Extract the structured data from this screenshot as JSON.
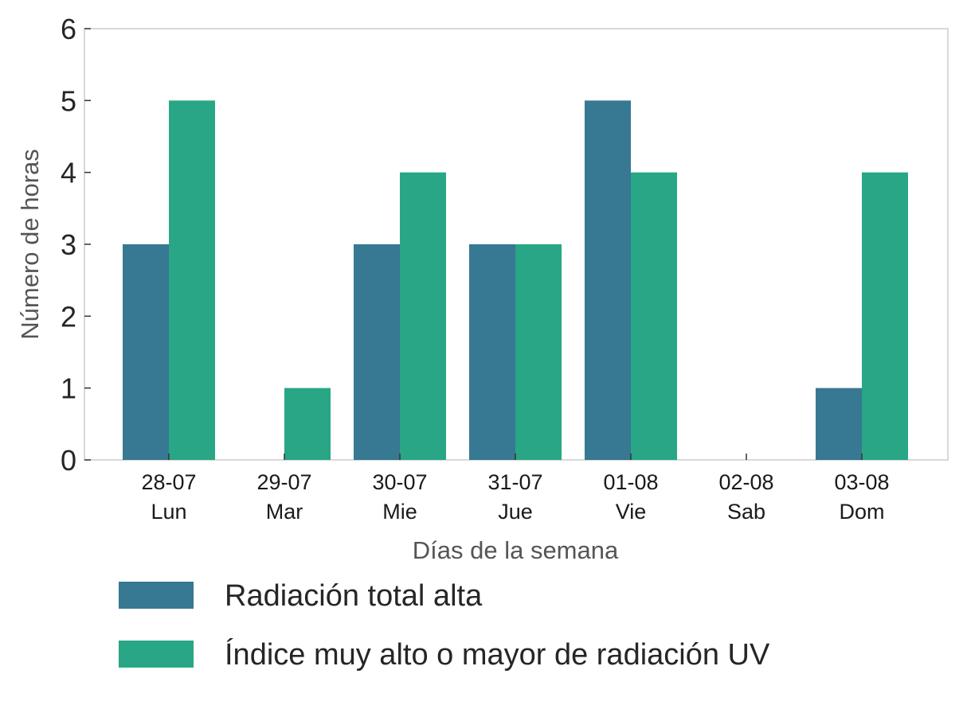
{
  "chart_data": {
    "type": "bar",
    "categories": [
      [
        "28-07",
        "Lun"
      ],
      [
        "29-07",
        "Mar"
      ],
      [
        "30-07",
        "Mie"
      ],
      [
        "31-07",
        "Jue"
      ],
      [
        "01-08",
        "Vie"
      ],
      [
        "02-08",
        "Sab"
      ],
      [
        "03-08",
        "Dom"
      ]
    ],
    "series": [
      {
        "name": "Radiación total alta",
        "color": "#377892",
        "values": [
          3,
          0,
          3,
          3,
          5,
          0,
          1
        ]
      },
      {
        "name": "Índice muy alto o mayor de radiación UV",
        "color": "#28a685",
        "values": [
          5,
          1,
          4,
          3,
          4,
          0,
          4
        ]
      }
    ],
    "xlabel": "Días de la semana",
    "ylabel": "Número de horas",
    "ylim": [
      0,
      6
    ],
    "yticks": [
      "0",
      "1",
      "2",
      "3",
      "4",
      "5",
      "6"
    ],
    "grid": false,
    "legend_position": "bottom"
  }
}
